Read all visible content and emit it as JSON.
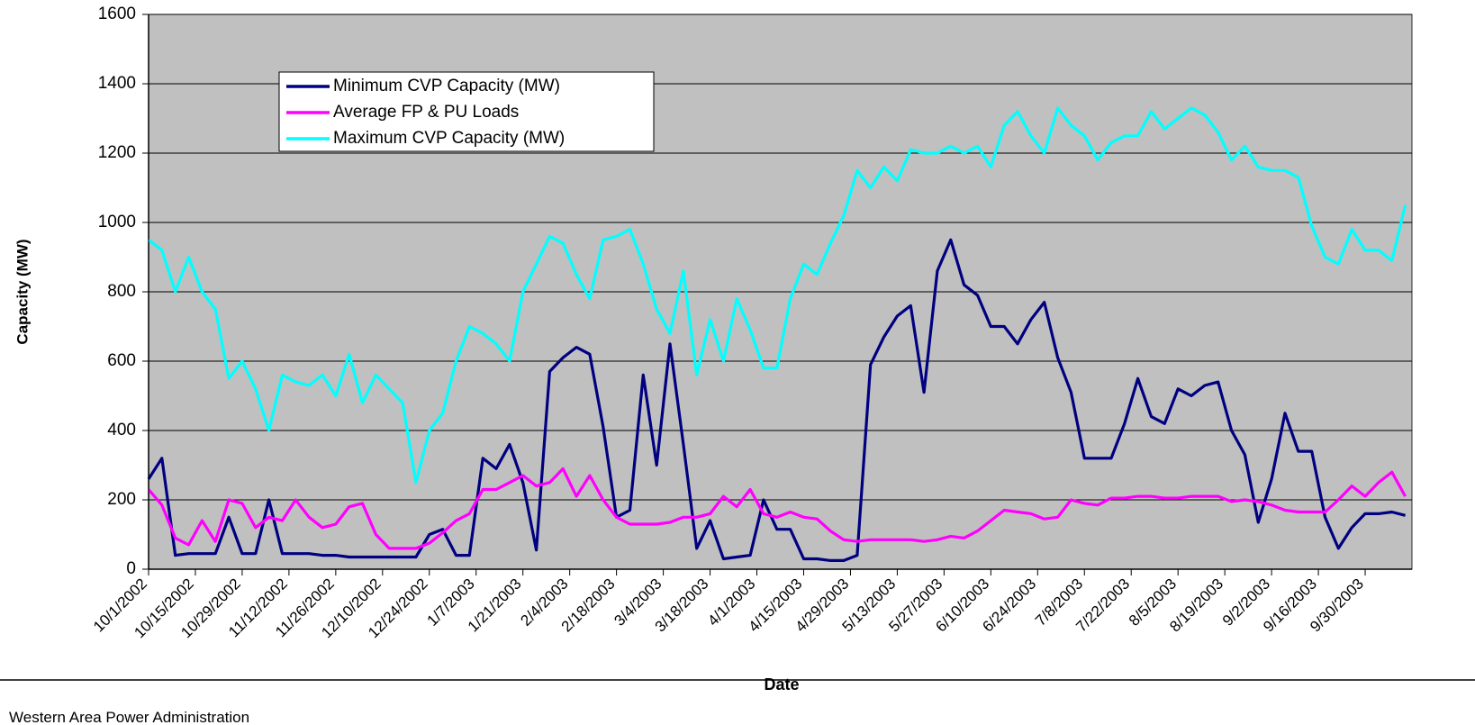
{
  "chart_data": {
    "type": "line",
    "xlabel": "Date",
    "ylabel": "Capacity (MW)",
    "xlim": [
      "10/1/2002",
      "10/14/2003"
    ],
    "ylim": [
      0,
      1600
    ],
    "yticks": [
      0,
      200,
      400,
      600,
      800,
      1000,
      1200,
      1400,
      1600
    ],
    "xticks": [
      "10/1/2002",
      "10/15/2002",
      "10/29/2002",
      "11/12/2002",
      "11/26/2002",
      "12/10/2002",
      "12/24/2002",
      "1/7/2003",
      "1/21/2003",
      "2/4/2003",
      "2/18/2003",
      "3/4/2003",
      "3/18/2003",
      "4/1/2003",
      "4/15/2003",
      "4/29/2003",
      "5/13/2003",
      "5/27/2003",
      "6/10/2003",
      "6/24/2003",
      "7/8/2003",
      "7/22/2003",
      "8/5/2003",
      "8/19/2003",
      "9/2/2003",
      "9/16/2003",
      "9/30/2003"
    ],
    "grid": true,
    "legend": "upper left",
    "x": [
      "10/1/2002",
      "10/5/2002",
      "10/9/2002",
      "10/13/2002",
      "10/17/2002",
      "10/21/2002",
      "10/25/2002",
      "10/29/2002",
      "11/2/2002",
      "11/6/2002",
      "11/10/2002",
      "11/14/2002",
      "11/18/2002",
      "11/22/2002",
      "11/26/2002",
      "11/30/2002",
      "12/4/2002",
      "12/8/2002",
      "12/12/2002",
      "12/16/2002",
      "12/20/2002",
      "12/24/2002",
      "12/28/2002",
      "1/1/2003",
      "1/5/2003",
      "1/9/2003",
      "1/13/2003",
      "1/17/2003",
      "1/21/2003",
      "1/25/2003",
      "1/29/2003",
      "2/2/2003",
      "2/6/2003",
      "2/10/2003",
      "2/14/2003",
      "2/18/2003",
      "2/22/2003",
      "2/26/2003",
      "3/2/2003",
      "3/6/2003",
      "3/10/2003",
      "3/14/2003",
      "3/18/2003",
      "3/22/2003",
      "3/26/2003",
      "3/30/2003",
      "4/3/2003",
      "4/7/2003",
      "4/11/2003",
      "4/15/2003",
      "4/19/2003",
      "4/23/2003",
      "4/27/2003",
      "5/1/2003",
      "5/5/2003",
      "5/9/2003",
      "5/13/2003",
      "5/17/2003",
      "5/21/2003",
      "5/25/2003",
      "5/29/2003",
      "6/2/2003",
      "6/6/2003",
      "6/10/2003",
      "6/14/2003",
      "6/18/2003",
      "6/22/2003",
      "6/26/2003",
      "6/30/2003",
      "7/4/2003",
      "7/8/2003",
      "7/12/2003",
      "7/16/2003",
      "7/20/2003",
      "7/24/2003",
      "7/28/2003",
      "8/1/2003",
      "8/5/2003",
      "8/9/2003",
      "8/13/2003",
      "8/17/2003",
      "8/21/2003",
      "8/25/2003",
      "8/29/2003",
      "9/2/2003",
      "9/6/2003",
      "9/10/2003",
      "9/14/2003",
      "9/18/2003",
      "9/22/2003",
      "9/26/2003",
      "9/30/2003",
      "10/4/2003",
      "10/8/2003",
      "10/12/2003"
    ],
    "series": [
      {
        "name": "Minimum CVP Capacity (MW)",
        "color": "#000080",
        "values": [
          260,
          320,
          40,
          45,
          45,
          45,
          150,
          45,
          45,
          200,
          45,
          45,
          45,
          40,
          40,
          35,
          35,
          35,
          35,
          35,
          35,
          100,
          115,
          40,
          40,
          320,
          290,
          360,
          250,
          55,
          570,
          610,
          640,
          620,
          410,
          150,
          170,
          560,
          300,
          650,
          360,
          60,
          140,
          30,
          35,
          40,
          200,
          115,
          115,
          30,
          30,
          25,
          25,
          40,
          590,
          670,
          730,
          760,
          510,
          860,
          950,
          820,
          790,
          700,
          700,
          650,
          720,
          770,
          610,
          510,
          320,
          320,
          320,
          420,
          550,
          440,
          420,
          520,
          500,
          530,
          540,
          400,
          330,
          135,
          260,
          450,
          340,
          340,
          150,
          60,
          120,
          160,
          160,
          165,
          155
        ]
      },
      {
        "name": "Average FP & PU Loads",
        "color": "#ff00ff",
        "values": [
          230,
          185,
          90,
          70,
          140,
          80,
          200,
          190,
          120,
          150,
          140,
          200,
          150,
          120,
          130,
          180,
          190,
          100,
          60,
          60,
          60,
          75,
          105,
          140,
          160,
          230,
          230,
          250,
          270,
          240,
          250,
          290,
          210,
          270,
          200,
          150,
          130,
          130,
          130,
          135,
          150,
          150,
          160,
          210,
          180,
          230,
          160,
          150,
          165,
          150,
          145,
          110,
          85,
          80,
          85,
          85,
          85,
          85,
          80,
          85,
          95,
          90,
          110,
          140,
          170,
          165,
          160,
          145,
          150,
          200,
          190,
          185,
          205,
          205,
          210,
          210,
          205,
          205,
          210,
          210,
          210,
          195,
          200,
          195,
          185,
          170,
          165,
          165,
          165,
          200,
          240,
          210,
          250,
          280,
          210
        ]
      },
      {
        "name": "Maximum CVP Capacity (MW)",
        "color": "#00ffff",
        "values": [
          950,
          920,
          800,
          900,
          800,
          750,
          550,
          600,
          520,
          400,
          560,
          540,
          530,
          560,
          500,
          620,
          480,
          560,
          520,
          480,
          250,
          400,
          450,
          600,
          700,
          680,
          650,
          600,
          800,
          880,
          960,
          940,
          850,
          780,
          950,
          960,
          980,
          880,
          750,
          680,
          860,
          560,
          720,
          600,
          780,
          690,
          580,
          580,
          780,
          880,
          850,
          940,
          1020,
          1150,
          1100,
          1160,
          1120,
          1210,
          1200,
          1200,
          1220,
          1200,
          1220,
          1160,
          1280,
          1320,
          1250,
          1200,
          1330,
          1280,
          1250,
          1180,
          1230,
          1250,
          1250,
          1320,
          1270,
          1300,
          1330,
          1310,
          1260,
          1180,
          1220,
          1160,
          1150,
          1150,
          1130,
          990,
          900,
          880,
          980,
          920,
          920,
          890,
          1050
        ]
      }
    ]
  },
  "footer": "Western Area Power Administration"
}
